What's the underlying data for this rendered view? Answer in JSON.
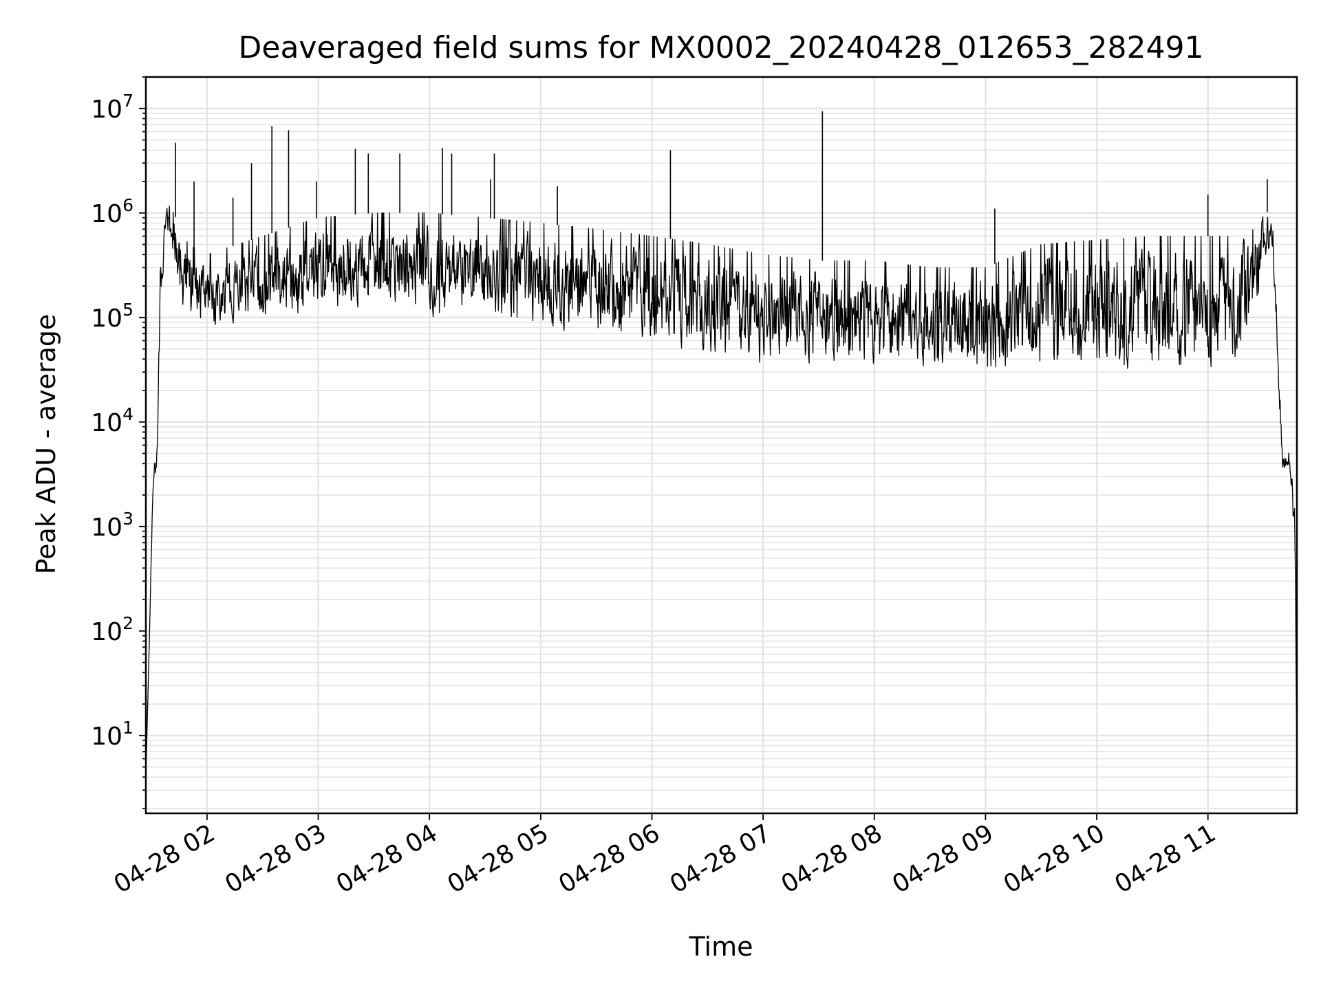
{
  "chart_data": {
    "type": "line",
    "title": "Deaveraged field sums for MX0002_20240428_012653_282491",
    "xlabel": "Time",
    "ylabel": "Peak ADU - average",
    "yscale": "log",
    "ylim": [
      1.8,
      20000000
    ],
    "xlim": [
      "2024-04-28 01:27",
      "2024-04-28 11:48"
    ],
    "grid": true,
    "line_color": "#000000",
    "x_ticks": [
      {
        "value": "2024-04-28 02:00",
        "label": "04-28 02"
      },
      {
        "value": "2024-04-28 03:00",
        "label": "04-28 03"
      },
      {
        "value": "2024-04-28 04:00",
        "label": "04-28 04"
      },
      {
        "value": "2024-04-28 05:00",
        "label": "04-28 05"
      },
      {
        "value": "2024-04-28 06:00",
        "label": "04-28 06"
      },
      {
        "value": "2024-04-28 07:00",
        "label": "04-28 07"
      },
      {
        "value": "2024-04-28 08:00",
        "label": "04-28 08"
      },
      {
        "value": "2024-04-28 09:00",
        "label": "04-28 09"
      },
      {
        "value": "2024-04-28 10:00",
        "label": "04-28 10"
      },
      {
        "value": "2024-04-28 11:00",
        "label": "04-28 11"
      }
    ],
    "y_ticks": [
      {
        "value": 10,
        "base": "10",
        "exp": "1"
      },
      {
        "value": 100,
        "base": "10",
        "exp": "2"
      },
      {
        "value": 1000,
        "base": "10",
        "exp": "3"
      },
      {
        "value": 10000,
        "base": "10",
        "exp": "4"
      },
      {
        "value": 100000,
        "base": "10",
        "exp": "5"
      },
      {
        "value": 1000000,
        "base": "10",
        "exp": "6"
      },
      {
        "value": 10000000,
        "base": "10",
        "exp": "7"
      }
    ],
    "series_envelope": {
      "x": [
        "2024-04-28 01:27",
        "2024-04-28 01:29",
        "2024-04-28 01:31",
        "2024-04-28 01:33",
        "2024-04-28 01:35",
        "2024-04-28 01:38",
        "2024-04-28 01:42",
        "2024-04-28 01:46",
        "2024-04-28 01:50",
        "2024-04-28 02:00",
        "2024-04-28 02:30",
        "2024-04-28 03:00",
        "2024-04-28 03:30",
        "2024-04-28 04:00",
        "2024-04-28 04:30",
        "2024-04-28 05:00",
        "2024-04-28 05:30",
        "2024-04-28 06:00",
        "2024-04-28 06:30",
        "2024-04-28 07:00",
        "2024-04-28 07:30",
        "2024-04-28 08:00",
        "2024-04-28 08:30",
        "2024-04-28 09:00",
        "2024-04-28 09:30",
        "2024-04-28 10:00",
        "2024-04-28 10:30",
        "2024-04-28 11:00",
        "2024-04-28 11:15",
        "2024-04-28 11:25",
        "2024-04-28 11:30",
        "2024-04-28 11:35",
        "2024-04-28 11:40",
        "2024-04-28 11:44",
        "2024-04-28 11:47",
        "2024-04-28 11:48"
      ],
      "y_low": [
        4,
        100,
        2500,
        3000,
        100000,
        700000,
        300000,
        100000,
        70000,
        70000,
        80000,
        90000,
        110000,
        90000,
        90000,
        70000,
        60000,
        50000,
        40000,
        30000,
        30000,
        30000,
        30000,
        25000,
        25000,
        25000,
        25000,
        25000,
        30000,
        60000,
        300000,
        400000,
        3000,
        4000,
        400,
        4
      ],
      "y_high": [
        4,
        100,
        4500,
        6500,
        600000,
        1300000,
        1000000,
        700000,
        500000,
        400000,
        600000,
        900000,
        1000000,
        1000000,
        900000,
        800000,
        700000,
        600000,
        500000,
        400000,
        350000,
        350000,
        300000,
        300000,
        500000,
        550000,
        600000,
        600000,
        600000,
        700000,
        1100000,
        900000,
        5500,
        5000,
        2000,
        4
      ]
    },
    "spikes": [
      {
        "x": "2024-04-28 01:43",
        "y": 4700000
      },
      {
        "x": "2024-04-28 01:53",
        "y": 2000000
      },
      {
        "x": "2024-04-28 02:14",
        "y": 1400000
      },
      {
        "x": "2024-04-28 02:24",
        "y": 3000000
      },
      {
        "x": "2024-04-28 02:35",
        "y": 6800000
      },
      {
        "x": "2024-04-28 02:44",
        "y": 6200000
      },
      {
        "x": "2024-04-28 02:59",
        "y": 2000000
      },
      {
        "x": "2024-04-28 03:20",
        "y": 4100000
      },
      {
        "x": "2024-04-28 03:27",
        "y": 3700000
      },
      {
        "x": "2024-04-28 03:44",
        "y": 3700000
      },
      {
        "x": "2024-04-28 04:07",
        "y": 4200000
      },
      {
        "x": "2024-04-28 04:12",
        "y": 3700000
      },
      {
        "x": "2024-04-28 04:33",
        "y": 2100000
      },
      {
        "x": "2024-04-28 04:35",
        "y": 3700000
      },
      {
        "x": "2024-04-28 05:09",
        "y": 1800000
      },
      {
        "x": "2024-04-28 06:10",
        "y": 4000000
      },
      {
        "x": "2024-04-28 07:32",
        "y": 9400000
      },
      {
        "x": "2024-04-28 09:05",
        "y": 1100000
      },
      {
        "x": "2024-04-28 11:00",
        "y": 1500000
      },
      {
        "x": "2024-04-28 11:32",
        "y": 2100000
      }
    ]
  }
}
